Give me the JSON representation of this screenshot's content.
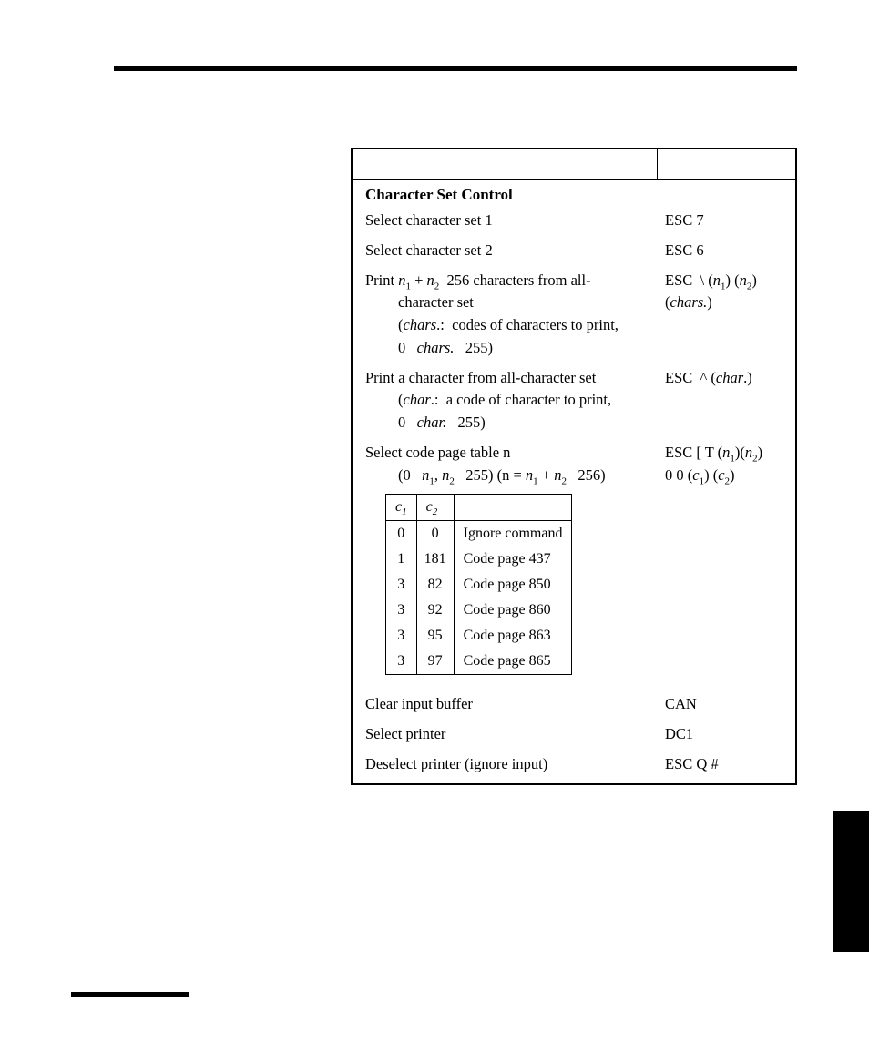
{
  "section_title": "Character Set Control",
  "rows": [
    {
      "left_html": "Select character set 1",
      "right_html": "ESC 7"
    },
    {
      "left_html": "Select character set 2",
      "right_html": "ESC 6"
    },
    {
      "left_html": "Print <span class='ital'>n</span><sub>1</sub> + <span class='ital'>n</span><sub>2</sub> &nbsp;256 characters from all-<span class='indent1'>character set</span><span class='indent1'>(<span class='ital'>chars</span>.:&nbsp; codes of characters to print,</span><span class='indent1'>0&nbsp;&nbsp;&nbsp;<span class='ital'>chars.</span>&nbsp;&nbsp;&nbsp;255)</span>",
      "right_html": "ESC &nbsp;\\ (<span class='ital'>n</span><sub>1</sub>) (<span class='ital'>n</span><sub>2</sub>)<br>(<span class='ital'>chars.</span>)"
    },
    {
      "left_html": "Print a character from all-character set<span class='indent1'>(<span class='ital'>char</span>.:&nbsp; a code of character to print,</span><span class='indent1'>0&nbsp;&nbsp;&nbsp;<span class='ital'>char.</span>&nbsp;&nbsp;&nbsp;255)</span>",
      "right_html": "ESC &nbsp;^ (<span class='ital'>char</span>.)"
    },
    {
      "left_html": "Select code page table n<span class='indent1'>(0&nbsp;&nbsp;&nbsp;<span class='ital'>n</span><sub>1</sub>, <span class='ital'>n</span><sub>2</sub>&nbsp;&nbsp;&nbsp;255) (n = <span class='ital'>n</span><sub>1</sub> + <span class='ital'>n</span><sub>2</sub>&nbsp;&nbsp;&nbsp;256)</span>",
      "right_html": "ESC [ T (<span class='ital'>n</span><sub>1</sub>)(<span class='ital'>n</span><sub>2</sub>)<br>0 0 (<span class='ital'>c</span><sub>1</sub>) (<span class='ital'>c</span><sub>2</sub>)"
    }
  ],
  "inner_table": {
    "headers": [
      "c₁",
      "c₂",
      ""
    ],
    "header_h1": "c",
    "header_h1_sub": "1",
    "header_h2": "c",
    "header_h2_sub": "2",
    "rows": [
      {
        "c1": "0",
        "c2": "0",
        "desc": "Ignore command"
      },
      {
        "c1": "1",
        "c2": "181",
        "desc": "Code page 437"
      },
      {
        "c1": "3",
        "c2": "82",
        "desc": "Code page 850"
      },
      {
        "c1": "3",
        "c2": "92",
        "desc": "Code page 860"
      },
      {
        "c1": "3",
        "c2": "95",
        "desc": "Code page 863"
      },
      {
        "c1": "3",
        "c2": "97",
        "desc": "Code page 865"
      }
    ]
  },
  "tail_rows": [
    {
      "left": "Clear input buffer",
      "right": "CAN"
    },
    {
      "left": "Select printer",
      "right": "DC1"
    },
    {
      "left": "Deselect printer (ignore input)",
      "right": "ESC Q #"
    }
  ]
}
